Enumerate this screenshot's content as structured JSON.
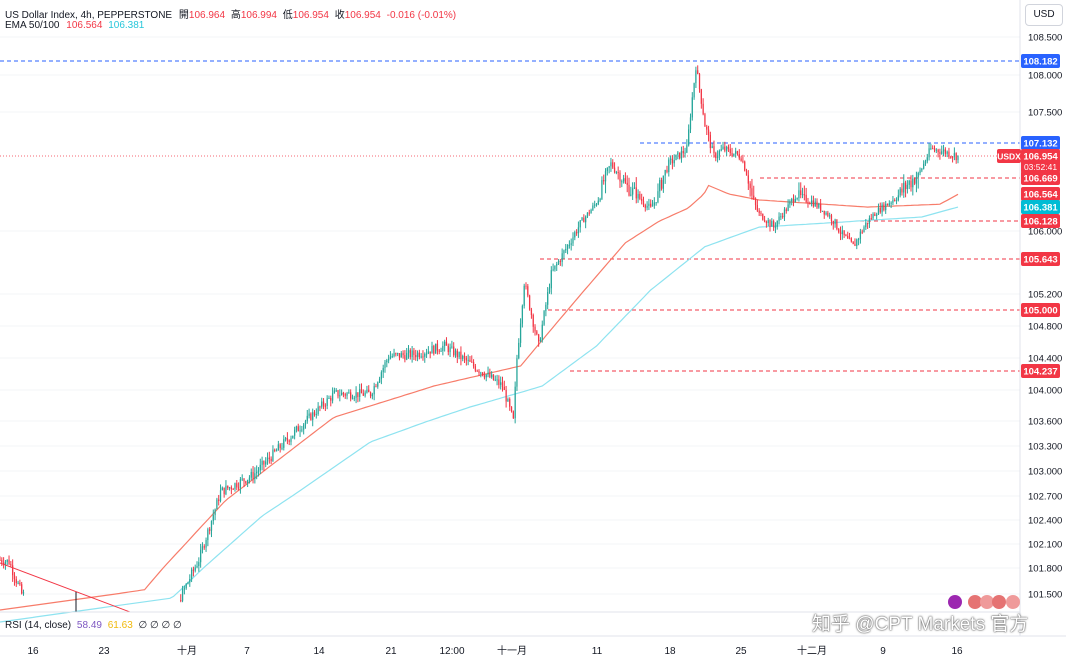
{
  "legend": {
    "symbol": "US Dollar Index, 4h, PEPPERSTONE",
    "open_label": "開",
    "open": "106.964",
    "high_label": "高",
    "high": "106.994",
    "low_label": "低",
    "low": "106.954",
    "close_label": "收",
    "close": "106.954",
    "change": "-0.016 (-0.01%)",
    "ema_label": "EMA 50/100",
    "ema50": "106.564",
    "ema100": "106.381"
  },
  "rsi": {
    "label": "RSI (14, close)",
    "v1": "58.49",
    "v2": "61.63",
    "rest": "∅ ∅ ∅ ∅"
  },
  "currency_button": "USD",
  "watermark": "知乎 @CPT Markets 官方",
  "colors": {
    "up": "#26a69a",
    "down": "#f23645",
    "ema50": "#f77c6a",
    "ema100": "#8ee3f0",
    "level_blue": "#2962ff",
    "level_red": "#f23645"
  },
  "chart_data": {
    "type": "candlestick",
    "title": "US Dollar Index, 4h, PEPPERSTONE",
    "ylim": [
      101.3,
      108.8
    ],
    "y_ticks": [
      "108.500",
      "108.000",
      "107.500",
      "106.000",
      "105.200",
      "104.800",
      "104.400",
      "104.000",
      "103.600",
      "103.300",
      "103.000",
      "102.700",
      "102.400",
      "102.100",
      "101.800",
      "101.500"
    ],
    "x_ticks": [
      "16",
      "23",
      "十月",
      "7",
      "14",
      "21",
      "12:00",
      "十一月",
      "11",
      "18",
      "25",
      "十二月",
      "9",
      "16"
    ],
    "horizontal_levels": [
      {
        "value": 108.182,
        "label": "108.182",
        "color": "blue"
      },
      {
        "value": 107.132,
        "label": "107.132",
        "color": "blue"
      },
      {
        "value": 106.669,
        "label": "106.669",
        "color": "red"
      },
      {
        "value": 106.128,
        "label": "106.128",
        "color": "red"
      },
      {
        "value": 105.643,
        "label": "105.643",
        "color": "red"
      },
      {
        "value": 105.0,
        "label": "105.000",
        "color": "red"
      },
      {
        "value": 104.237,
        "label": "104.237",
        "color": "red"
      }
    ],
    "price_tag": {
      "symbol": "USDX",
      "price": "106.954",
      "countdown": "03:52:41"
    },
    "ema50_tag": "106.564",
    "ema100_tag": "106.381",
    "series": [
      {
        "name": "EMA 50",
        "anchors": [
          [
            0,
            101.3
          ],
          [
            80,
            101.55
          ],
          [
            125,
            102.65
          ],
          [
            185,
            103.65
          ],
          [
            240,
            104.05
          ],
          [
            288,
            104.3
          ],
          [
            314,
            105.0
          ],
          [
            346,
            105.85
          ],
          [
            380,
            106.35
          ],
          [
            392,
            106.62
          ],
          [
            420,
            106.48
          ],
          [
            480,
            106.38
          ],
          [
            520,
            106.42
          ],
          [
            530,
            106.56
          ]
        ]
      },
      {
        "name": "EMA 100",
        "anchors": [
          [
            0,
            101.15
          ],
          [
            95,
            101.45
          ],
          [
            145,
            102.45
          ],
          [
            205,
            103.35
          ],
          [
            260,
            103.78
          ],
          [
            300,
            104.05
          ],
          [
            330,
            104.55
          ],
          [
            360,
            105.25
          ],
          [
            390,
            105.8
          ],
          [
            420,
            106.05
          ],
          [
            470,
            106.12
          ],
          [
            510,
            106.2
          ],
          [
            530,
            106.38
          ]
        ]
      },
      {
        "name": "Price",
        "anchors": [
          [
            0,
            101.9
          ],
          [
            5,
            101.88
          ],
          [
            12,
            101.5
          ],
          [
            50,
            101.1
          ],
          [
            95,
            101.25
          ],
          [
            110,
            101.9
          ],
          [
            122,
            102.75
          ],
          [
            140,
            102.95
          ],
          [
            160,
            103.4
          ],
          [
            185,
            103.95
          ],
          [
            205,
            103.95
          ],
          [
            215,
            104.42
          ],
          [
            230,
            104.45
          ],
          [
            246,
            104.55
          ],
          [
            262,
            104.3
          ],
          [
            278,
            104.05
          ],
          [
            284,
            103.6
          ],
          [
            286,
            104.4
          ],
          [
            290,
            105.35
          ],
          [
            298,
            104.55
          ],
          [
            305,
            105.45
          ],
          [
            320,
            106.05
          ],
          [
            330,
            106.45
          ],
          [
            338,
            106.85
          ],
          [
            346,
            106.62
          ],
          [
            352,
            106.55
          ],
          [
            360,
            106.35
          ],
          [
            370,
            106.85
          ],
          [
            380,
            107.05
          ],
          [
            385,
            108.12
          ],
          [
            390,
            107.35
          ],
          [
            395,
            106.95
          ],
          [
            400,
            107.05
          ],
          [
            410,
            106.95
          ],
          [
            420,
            106.25
          ],
          [
            428,
            106.05
          ],
          [
            440,
            106.55
          ],
          [
            450,
            106.45
          ],
          [
            458,
            106.25
          ],
          [
            466,
            105.95
          ],
          [
            472,
            105.8
          ],
          [
            478,
            106.05
          ],
          [
            485,
            106.3
          ],
          [
            492,
            106.45
          ],
          [
            500,
            106.6
          ],
          [
            508,
            106.7
          ],
          [
            515,
            107.05
          ],
          [
            522,
            107.02
          ],
          [
            530,
            106.95
          ]
        ]
      }
    ]
  }
}
